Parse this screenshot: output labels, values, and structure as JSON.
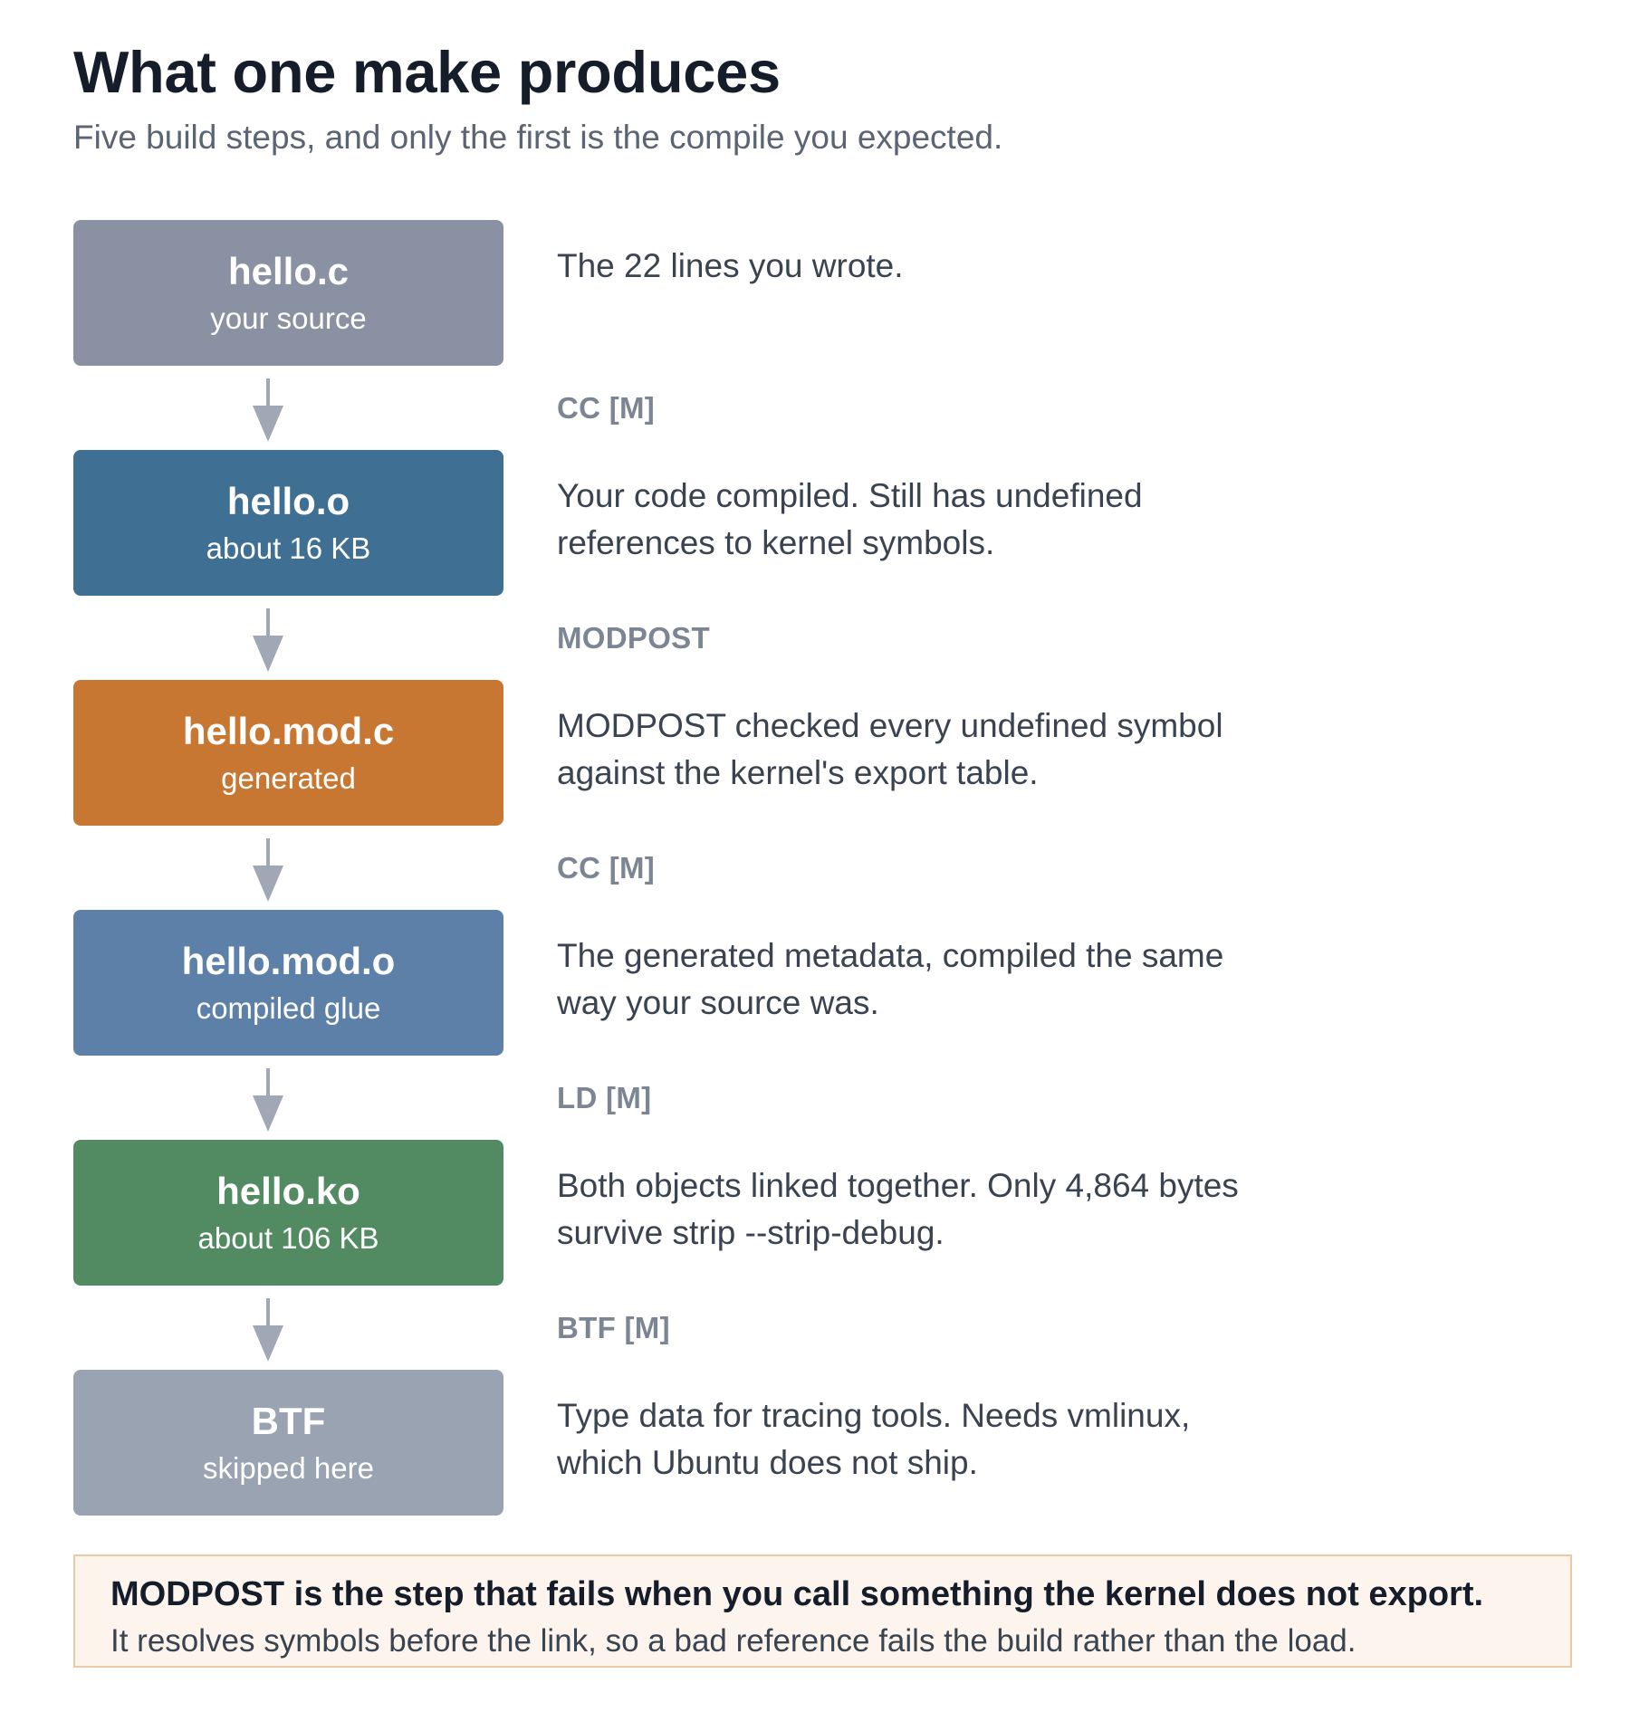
{
  "title": "What one make produces",
  "subtitle": "Five build steps, and only the first is the compile you expected.",
  "stages": [
    {
      "name": "hello.c",
      "sub": "your source",
      "desc": "The 22 lines you wrote.",
      "color": "#8991a3"
    },
    {
      "name": "hello.o",
      "sub": "about 16 KB",
      "desc": "Your code compiled. Still has undefined references to kernel symbols.",
      "color": "#3f6f92"
    },
    {
      "name": "hello.mod.c",
      "sub": "generated",
      "desc": "MODPOST checked every undefined symbol against the kernel's export table.",
      "color": "#c87733"
    },
    {
      "name": "hello.mod.o",
      "sub": "compiled glue",
      "desc": "The generated metadata, compiled the same way your source was.",
      "color": "#5c80a8"
    },
    {
      "name": "hello.ko",
      "sub": "about 106 KB",
      "desc": "Both objects linked together. Only 4,864 bytes survive strip --strip-debug.",
      "color": "#528b62"
    },
    {
      "name": "BTF",
      "sub": "skipped here",
      "desc": "Type data for tracing tools. Needs vmlinux, which Ubuntu does not ship.",
      "color": "#9aa3b1"
    }
  ],
  "steps": [
    {
      "label": "CC [M]"
    },
    {
      "label": "MODPOST"
    },
    {
      "label": "CC [M]"
    },
    {
      "label": "LD [M]"
    },
    {
      "label": "BTF [M]"
    }
  ],
  "arrow_color": "#a0a8b5",
  "callout": {
    "strong": "MODPOST is the step that fails when you call something the kernel does not export.",
    "body": "It resolves symbols before the link, so a bad reference fails the build rather than the load."
  }
}
